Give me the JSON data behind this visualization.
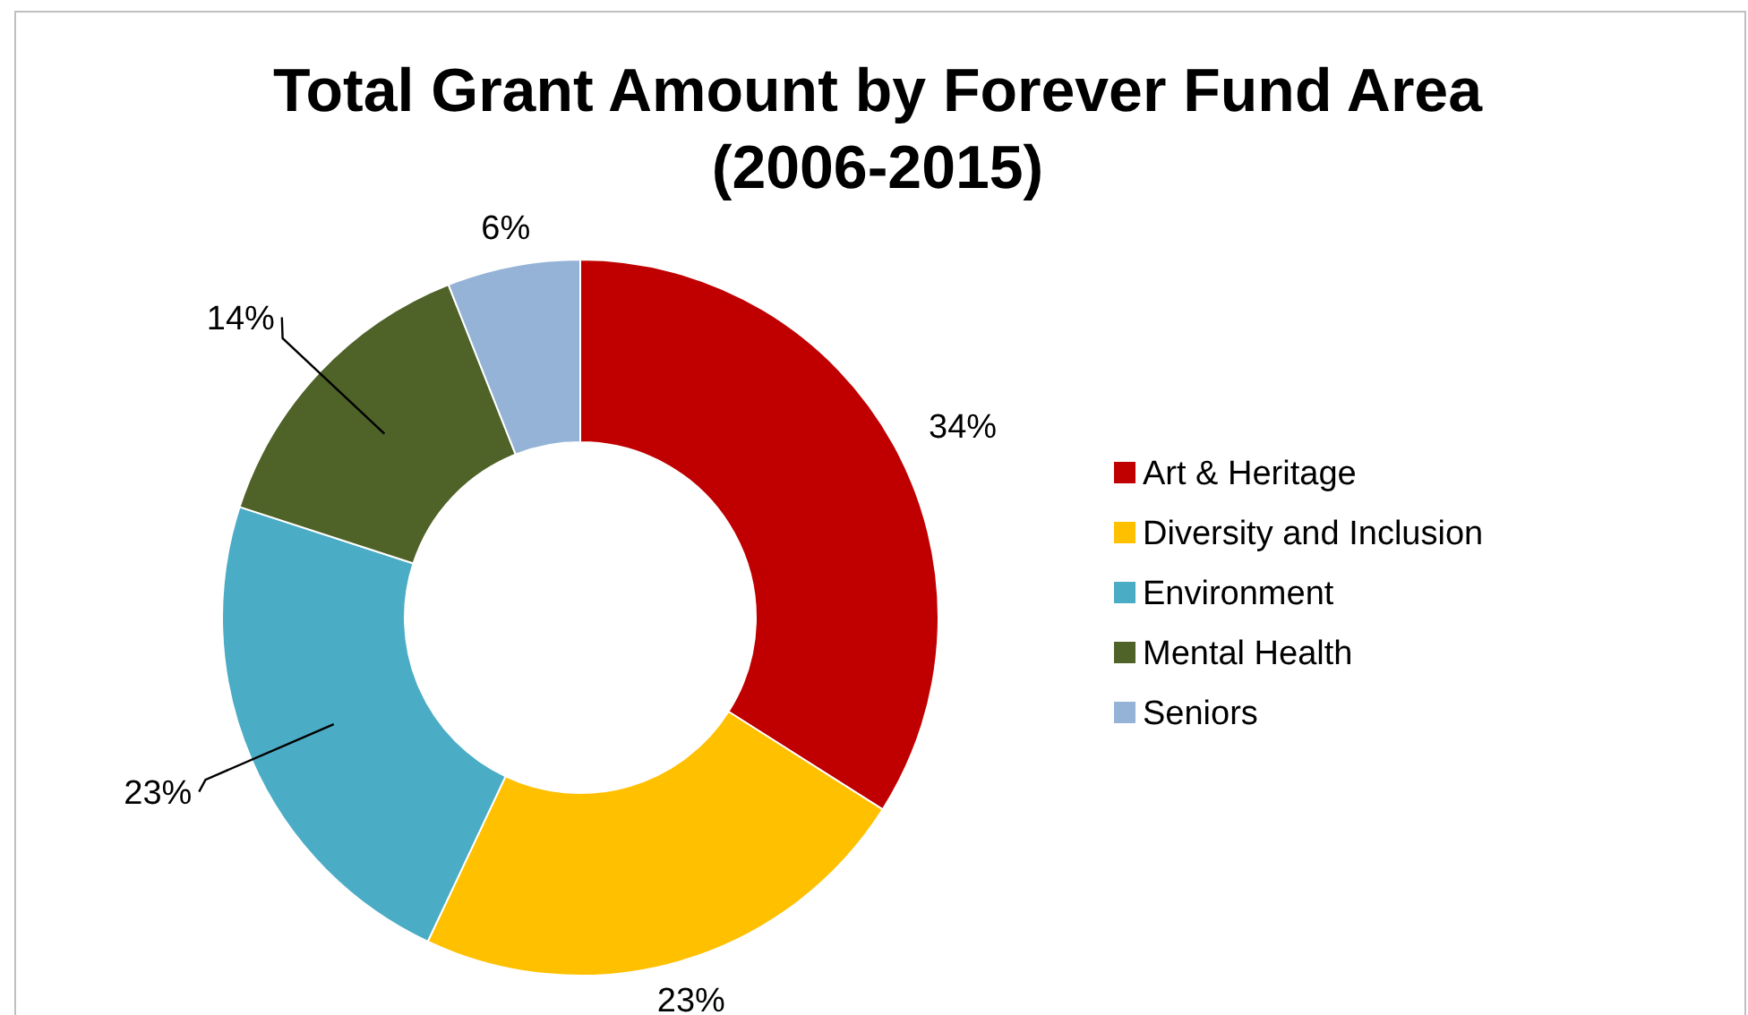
{
  "chart_data": {
    "type": "donut",
    "title": "Total Grant Amount by Forever Fund Area (2006-2015)",
    "categories": [
      "Art & Heritage",
      "Diversity and Inclusion",
      "Environment",
      "Mental Health",
      "Seniors"
    ],
    "values": [
      34,
      23,
      23,
      14,
      6
    ],
    "colors": [
      "#c00000",
      "#ffc000",
      "#4bacc6",
      "#4f6228",
      "#95b3d7"
    ],
    "value_labels": [
      "34%",
      "23%",
      "23%",
      "14%",
      "6%"
    ],
    "legend": "right"
  }
}
